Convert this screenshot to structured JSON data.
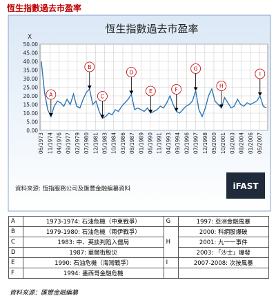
{
  "header": {
    "title": "恆生指數過去市盈率"
  },
  "chart_data": {
    "type": "line",
    "title": "恆生指數過去市盈率",
    "y_label": "X",
    "x": [
      1973.5,
      1974.0,
      1974.5,
      1975.0,
      1975.5,
      1976.0,
      1976.5,
      1977.0,
      1977.5,
      1978.0,
      1978.5,
      1979.0,
      1979.5,
      1980.0,
      1980.5,
      1981.0,
      1981.5,
      1982.0,
      1982.5,
      1983.0,
      1983.5,
      1984.0,
      1984.5,
      1985.0,
      1985.5,
      1986.0,
      1986.5,
      1987.0,
      1987.5,
      1988.0,
      1988.5,
      1989.0,
      1989.5,
      1990.0,
      1990.5,
      1991.0,
      1991.5,
      1992.0,
      1992.5,
      1993.0,
      1993.5,
      1994.0,
      1994.5,
      1995.0,
      1995.5,
      1996.0,
      1996.5,
      1997.0,
      1997.5,
      1998.0,
      1998.5,
      1999.0,
      1999.5,
      2000.0,
      2000.5,
      2001.0,
      2001.5,
      2002.0,
      2002.5,
      2003.0,
      2003.5,
      2004.0,
      2004.5,
      2005.0,
      2005.5,
      2006.0,
      2006.5,
      2007.0,
      2007.5,
      2008.0,
      2008.5
    ],
    "series": [
      {
        "color": "#2e75b6",
        "values": [
          40,
          22,
          12,
          8,
          14,
          17,
          16,
          14,
          18,
          15,
          21,
          14,
          13,
          18,
          22,
          24,
          15,
          17,
          11,
          7,
          8,
          10,
          9,
          12,
          11,
          14,
          16,
          18,
          21,
          12,
          13,
          12,
          11,
          13,
          10,
          11,
          12,
          14,
          13,
          16,
          20,
          15,
          11,
          10,
          12,
          14,
          15,
          17,
          23,
          12,
          8,
          13,
          20,
          24,
          17,
          15,
          13,
          19,
          16,
          13,
          14,
          18,
          15,
          14,
          16,
          15,
          16,
          17,
          20,
          14,
          13
        ]
      }
    ],
    "xlim": [
      1973.3,
      2008.7
    ],
    "xticks": [
      {
        "value": 1973.42,
        "label": "06/1973"
      },
      {
        "value": 1974.83,
        "label": "11/1974"
      },
      {
        "value": 1976.25,
        "label": "04/1976"
      },
      {
        "value": 1977.67,
        "label": "09/1977"
      },
      {
        "value": 1979.08,
        "label": "02/1979"
      },
      {
        "value": 1980.5,
        "label": "07/1980"
      },
      {
        "value": 1981.92,
        "label": "12/1981"
      },
      {
        "value": 1983.33,
        "label": "05/1983"
      },
      {
        "value": 1984.75,
        "label": "10/1984"
      },
      {
        "value": 1986.17,
        "label": "03/1986"
      },
      {
        "value": 1987.58,
        "label": "08/1987"
      },
      {
        "value": 1989.0,
        "label": "01/1989"
      },
      {
        "value": 1990.42,
        "label": "06/1990"
      },
      {
        "value": 1991.83,
        "label": "11/1991"
      },
      {
        "value": 1993.25,
        "label": "04/1993"
      },
      {
        "value": 1994.67,
        "label": "09/1994"
      },
      {
        "value": 1996.08,
        "label": "02/1996"
      },
      {
        "value": 1997.5,
        "label": "07/1997"
      },
      {
        "value": 1998.92,
        "label": "12/1998"
      },
      {
        "value": 2000.33,
        "label": "05/2000"
      },
      {
        "value": 2001.75,
        "label": "10/2001"
      },
      {
        "value": 2003.17,
        "label": "03/2003"
      },
      {
        "value": 2004.58,
        "label": "08/2004"
      },
      {
        "value": 2006.0,
        "label": "01/2006"
      },
      {
        "value": 2007.42,
        "label": "06/2007"
      }
    ],
    "ylim": [
      0,
      50
    ],
    "yticks": [
      {
        "value": 0,
        "label": "0.00"
      },
      {
        "value": 5,
        "label": "5.00"
      },
      {
        "value": 10,
        "label": "10.00"
      },
      {
        "value": 15,
        "label": "15.00"
      },
      {
        "value": 20,
        "label": "20.00"
      },
      {
        "value": 25,
        "label": "25.00"
      },
      {
        "value": 30,
        "label": "30.00"
      },
      {
        "value": 35,
        "label": "35.00"
      },
      {
        "value": 40,
        "label": "40.00"
      },
      {
        "value": 45,
        "label": "45.00"
      },
      {
        "value": 50,
        "label": "50.00"
      }
    ],
    "grid": true,
    "annotations": [
      {
        "label": "A",
        "x": 1975.0
      },
      {
        "label": "B",
        "x": 1981.0
      },
      {
        "label": "C",
        "x": 1983.0
      },
      {
        "label": "D",
        "x": 1987.5
      },
      {
        "label": "E",
        "x": 1990.5
      },
      {
        "label": "F",
        "x": 1994.5
      },
      {
        "label": "G",
        "x": 1997.5
      },
      {
        "label": "H",
        "x": 2001.5
      },
      {
        "label": "I",
        "x": 2007.5
      }
    ],
    "source": "資料來源: 恆指服務公司及匯豐金融編纂資料",
    "logo": "iFAST"
  },
  "table": {
    "left": [
      [
        "A",
        "1973-1974: 石油危機（中東戰爭）"
      ],
      [
        "B",
        "1979-1980: 石油危機（兩伊戰爭）"
      ],
      [
        "C",
        "1983: 中、英談判陷入僵局"
      ],
      [
        "D",
        "1987: 華爾街股災"
      ],
      [
        "E",
        "1990: 石油危機（海灣戰爭）"
      ],
      [
        "F",
        "1994: 墨西哥金融危機"
      ]
    ],
    "right": [
      {
        "letter": "G",
        "events": [
          "1997: 亞洲金融風暴"
        ]
      },
      {
        "letter": "H",
        "events": [
          "2000: 科網股爆破",
          "2001: 九一一事件",
          "2003: 「沙士」爆發"
        ]
      },
      {
        "letter": "I",
        "events": [
          "2007-2008: 次按風暴"
        ]
      }
    ]
  },
  "footer": {
    "note": "資料來源：匯豐金融編纂"
  }
}
